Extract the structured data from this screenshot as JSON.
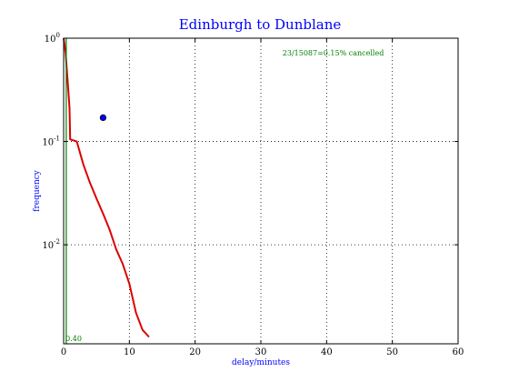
{
  "chart_data": {
    "type": "line",
    "title": "Edinburgh to Dunblane",
    "xlabel": "delay/minutes",
    "ylabel": "frequency",
    "xlim": [
      0,
      60
    ],
    "ylim": [
      0.0011,
      1.0
    ],
    "yscale": "log",
    "grid": true,
    "x_ticks": [
      0,
      10,
      20,
      30,
      40,
      50,
      60
    ],
    "x_tick_labels": [
      "0",
      "10",
      "20",
      "30",
      "40",
      "50",
      "60"
    ],
    "y_ticks": [
      0.01,
      0.1,
      1.0
    ],
    "y_tick_labels": [
      {
        "base": "10",
        "exp": "-2"
      },
      {
        "base": "10",
        "exp": "-1"
      },
      {
        "base": "10",
        "exp": "0"
      }
    ],
    "annotations": [
      {
        "text": "23/15087=0.15% cancelled",
        "x": 41,
        "y": 0.68,
        "color": "#008000"
      },
      {
        "text": "0.40",
        "x": 0.3,
        "y": 0.00103,
        "color": "#008000"
      }
    ],
    "series": [
      {
        "color": "#dd0000",
        "points": [
          [
            0,
            1.0
          ],
          [
            0.3,
            0.72
          ],
          [
            0.6,
            0.4
          ],
          [
            0.9,
            0.21
          ],
          [
            1,
            0.105
          ],
          [
            2,
            0.1
          ],
          [
            3,
            0.06
          ],
          [
            4,
            0.04
          ],
          [
            5,
            0.028
          ],
          [
            6,
            0.02
          ],
          [
            7,
            0.014
          ],
          [
            8,
            0.009
          ],
          [
            9,
            0.0065
          ],
          [
            10,
            0.0042
          ],
          [
            11,
            0.0022
          ],
          [
            12,
            0.0015
          ],
          [
            13,
            0.00128
          ]
        ]
      },
      {
        "color": "#008000",
        "points": [
          [
            0.4,
            0.001
          ],
          [
            0.4,
            1.0
          ]
        ]
      },
      {
        "color": "#0000ff",
        "marker": "circle",
        "points": [
          [
            6,
            0.17
          ]
        ]
      }
    ]
  }
}
